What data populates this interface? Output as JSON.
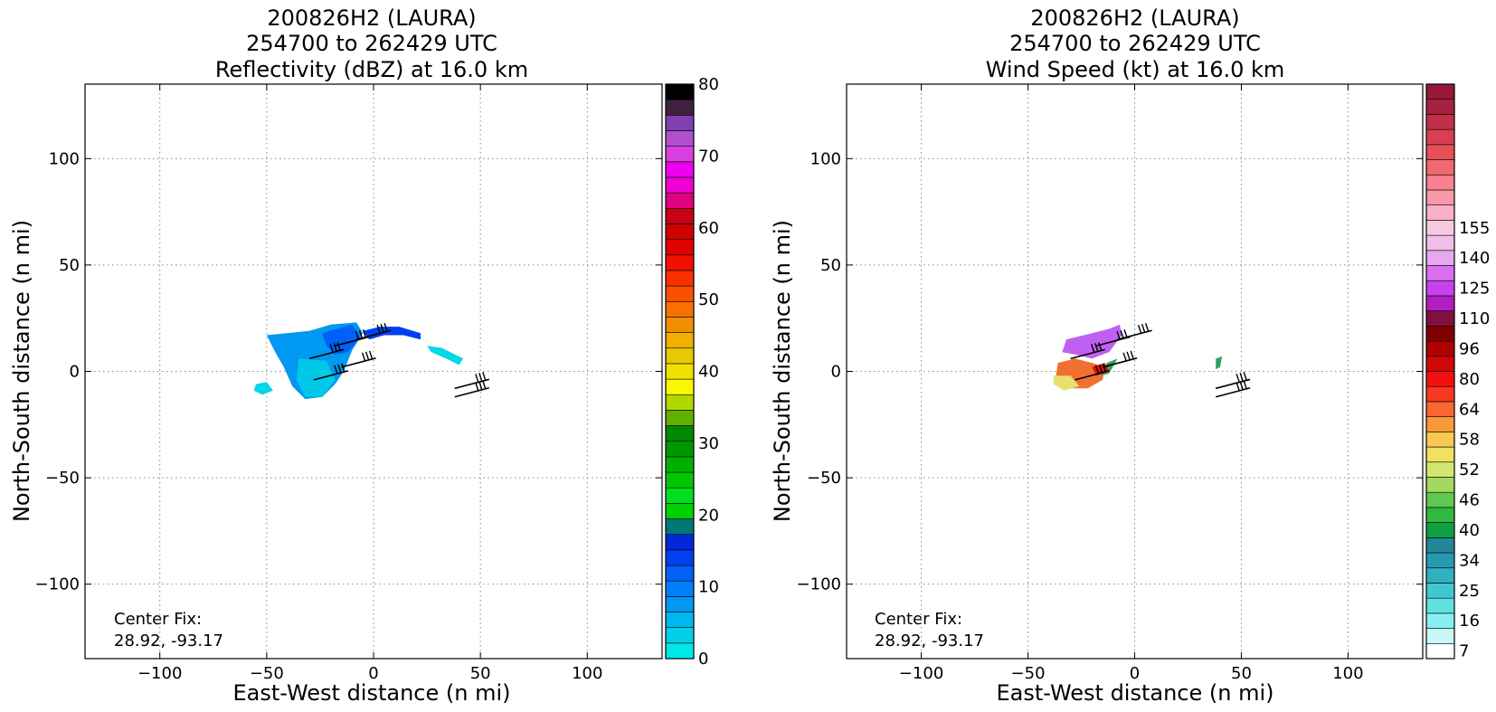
{
  "chart_data": [
    {
      "type": "heatmap",
      "title": [
        "200826H2 (LAURA)",
        "254700 to 262429 UTC",
        "Reflectivity (dBZ) at 16.0 km"
      ],
      "xlabel": "East-West distance (n mi)",
      "ylabel": "North-South distance (n mi)",
      "xlim": [
        -135,
        135
      ],
      "ylim": [
        -135,
        135
      ],
      "xticks": [
        -100,
        -50,
        0,
        50,
        100
      ],
      "yticks": [
        -100,
        -50,
        0,
        50,
        100
      ],
      "xtick_labels": [
        "−100",
        "−50",
        "0",
        "50",
        "100"
      ],
      "ytick_labels": [
        "−100",
        "−50",
        "0",
        "50",
        "100"
      ],
      "grid": true,
      "annotation": [
        "Center Fix:",
        "28.92, -93.17"
      ],
      "colorbar": {
        "levels": 32,
        "ticks": [
          0,
          10,
          20,
          30,
          40,
          50,
          60,
          70,
          80
        ],
        "tick_labels": [
          "0",
          "10",
          "20",
          "30",
          "40",
          "50",
          "60",
          "70",
          "80"
        ],
        "colors": [
          "#00e8e8",
          "#00d0e8",
          "#00b8f0",
          "#0098f0",
          "#0080f8",
          "#0060f8",
          "#0040f0",
          "#0028d8",
          "#007878",
          "#00d000",
          "#00e020",
          "#00c800",
          "#00b000",
          "#009800",
          "#008800",
          "#60b000",
          "#b0d800",
          "#f8f800",
          "#f0e000",
          "#e8c800",
          "#f0b000",
          "#f09000",
          "#f87000",
          "#f85000",
          "#f83000",
          "#f01000",
          "#e00000",
          "#d00000",
          "#c80018",
          "#e00080",
          "#f000d0",
          "#f000f0",
          "#d840e0",
          "#b050d0",
          "#8040b0",
          "#402040",
          "#000000"
        ]
      },
      "regions": [
        {
          "name": "core-echo",
          "color": "#0098f0",
          "points": [
            [
              -50,
              17
            ],
            [
              -30,
              19
            ],
            [
              -20,
              22
            ],
            [
              -8,
              23
            ],
            [
              -5,
              18
            ],
            [
              -10,
              10
            ],
            [
              -14,
              0
            ],
            [
              -18,
              -6
            ],
            [
              -24,
              -12
            ],
            [
              -32,
              -13
            ],
            [
              -38,
              -7
            ],
            [
              -42,
              2
            ],
            [
              -46,
              9
            ]
          ]
        },
        {
          "name": "inner-echo",
          "color": "#0060f8",
          "points": [
            [
              -24,
              18
            ],
            [
              -10,
              22
            ],
            [
              -6,
              16
            ],
            [
              -12,
              9
            ],
            [
              -18,
              8
            ],
            [
              -22,
              12
            ]
          ]
        },
        {
          "name": "outer-echo",
          "color": "#00c8e8",
          "points": [
            [
              -35,
              6
            ],
            [
              -22,
              5
            ],
            [
              -18,
              -4
            ],
            [
              -24,
              -12
            ],
            [
              -32,
              -12
            ],
            [
              -36,
              -4
            ]
          ]
        },
        {
          "name": "arc-band",
          "color": "#0040f0",
          "points": [
            [
              -5,
              19
            ],
            [
              3,
              21
            ],
            [
              12,
              21
            ],
            [
              22,
              18
            ],
            [
              22,
              15
            ],
            [
              14,
              17
            ],
            [
              5,
              17
            ],
            [
              -2,
              15
            ]
          ]
        },
        {
          "name": "west-fragment",
          "color": "#00d8e8",
          "points": [
            [
              -55,
              -6
            ],
            [
              -50,
              -5
            ],
            [
              -47,
              -9
            ],
            [
              -52,
              -11
            ],
            [
              -56,
              -9
            ]
          ]
        },
        {
          "name": "east-fragment",
          "color": "#00d8e8",
          "points": [
            [
              25,
              12
            ],
            [
              32,
              11
            ],
            [
              38,
              8
            ],
            [
              42,
              6
            ],
            [
              40,
              3
            ],
            [
              34,
              6
            ],
            [
              27,
              9
            ]
          ]
        }
      ]
    },
    {
      "type": "heatmap",
      "title": [
        "200826H2 (LAURA)",
        "254700 to 262429 UTC",
        "Wind Speed (kt) at 16.0 km"
      ],
      "xlabel": "East-West distance (n mi)",
      "ylabel": "North-South distance (n mi)",
      "xlim": [
        -135,
        135
      ],
      "ylim": [
        -135,
        135
      ],
      "xticks": [
        -100,
        -50,
        0,
        50,
        100
      ],
      "yticks": [
        -100,
        -50,
        0,
        50,
        100
      ],
      "xtick_labels": [
        "−100",
        "−50",
        "0",
        "50",
        "100"
      ],
      "ytick_labels": [
        "−100",
        "−50",
        "0",
        "50",
        "100"
      ],
      "grid": true,
      "annotation": [
        "Center Fix:",
        "28.92, -93.17"
      ],
      "colorbar": {
        "levels": 29,
        "ticks": [
          7,
          16,
          25,
          34,
          40,
          46,
          52,
          58,
          64,
          80,
          96,
          110,
          125,
          140,
          155
        ],
        "tick_labels": [
          "7",
          "16",
          "25",
          "34",
          "40",
          "46",
          "52",
          "58",
          "64",
          "80",
          "96",
          "110",
          "125",
          "140",
          "155"
        ],
        "colors": [
          "#ffffff",
          "#c8f8f8",
          "#88f0f0",
          "#60e0e0",
          "#40c8d0",
          "#30b0c0",
          "#2898b0",
          "#208898",
          "#10a040",
          "#30b840",
          "#60c850",
          "#a0d860",
          "#d0e870",
          "#f0e060",
          "#f8c850",
          "#f89838",
          "#f86830",
          "#f83820",
          "#f01010",
          "#d00808",
          "#b00000",
          "#800000",
          "#801040",
          "#b020c0",
          "#c840f0",
          "#d870f0",
          "#e8a8f0",
          "#f0c0e8",
          "#f8c8e0",
          "#f8b0c8",
          "#f898a8",
          "#f88090",
          "#f06870",
          "#e85058",
          "#d84050",
          "#c03048",
          "#a82040",
          "#981838"
        ]
      },
      "regions": [
        {
          "name": "upper-purple",
          "color": "#c060f0",
          "points": [
            [
              -32,
              15
            ],
            [
              -20,
              18
            ],
            [
              -12,
              20
            ],
            [
              -7,
              22
            ],
            [
              -6,
              17
            ],
            [
              -12,
              9
            ],
            [
              -20,
              6
            ],
            [
              -28,
              8
            ],
            [
              -34,
              9
            ]
          ]
        },
        {
          "name": "warm-core",
          "color": "#f07030",
          "points": [
            [
              -36,
              4
            ],
            [
              -28,
              6
            ],
            [
              -20,
              4
            ],
            [
              -14,
              2
            ],
            [
              -15,
              -4
            ],
            [
              -22,
              -8
            ],
            [
              -30,
              -8
            ],
            [
              -37,
              -3
            ]
          ]
        },
        {
          "name": "yellow-south",
          "color": "#e8e070",
          "points": [
            [
              -38,
              -2
            ],
            [
              -30,
              -2
            ],
            [
              -26,
              -7
            ],
            [
              -33,
              -9
            ],
            [
              -38,
              -6
            ]
          ]
        },
        {
          "name": "green-fringe",
          "color": "#30a060",
          "points": [
            [
              -13,
              4
            ],
            [
              -8,
              6
            ],
            [
              -12,
              -1
            ],
            [
              -16,
              -2
            ]
          ]
        },
        {
          "name": "red-patch",
          "color": "#e01010",
          "points": [
            [
              -20,
              2
            ],
            [
              -14,
              4
            ],
            [
              -12,
              0
            ],
            [
              -18,
              -2
            ]
          ]
        },
        {
          "name": "east-strip",
          "color": "#30a060",
          "points": [
            [
              38,
              6
            ],
            [
              41,
              7
            ],
            [
              40,
              2
            ],
            [
              38,
              1
            ]
          ]
        }
      ]
    }
  ]
}
